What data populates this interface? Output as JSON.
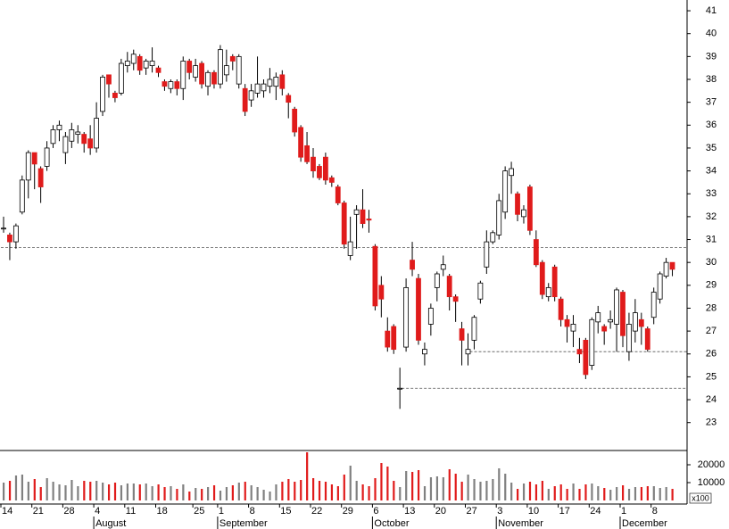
{
  "chart_data": {
    "type": "candlestick",
    "categories": [
      "14",
      null,
      null,
      null,
      null,
      "21",
      null,
      null,
      null,
      null,
      "28",
      null,
      null,
      null,
      null,
      "4",
      null,
      null,
      null,
      null,
      "11",
      null,
      null,
      null,
      null,
      "18",
      null,
      null,
      null,
      null,
      null,
      "25",
      null,
      null,
      null,
      "1",
      null,
      null,
      null,
      null,
      "8",
      null,
      null,
      null,
      null,
      "15",
      null,
      null,
      null,
      null,
      "22",
      null,
      null,
      null,
      null,
      "29",
      null,
      null,
      null,
      null,
      "6",
      null,
      null,
      null,
      null,
      "13",
      null,
      null,
      null,
      null,
      "20",
      null,
      null,
      null,
      null,
      "27",
      null,
      null,
      null,
      null,
      "3",
      null,
      null,
      null,
      null,
      "10",
      null,
      null,
      null,
      null,
      "17",
      null,
      null,
      null,
      null,
      "24",
      null,
      null,
      null,
      null,
      "1",
      null,
      null,
      null,
      null,
      "8",
      null,
      null,
      null
    ],
    "month_labels": [
      {
        "label": "August",
        "category": 15
      },
      {
        "label": "September",
        "category": 35
      },
      {
        "label": "October",
        "category": 60
      },
      {
        "label": "November",
        "category": 80
      },
      {
        "label": "December",
        "category": 100
      }
    ],
    "open": [
      31.5,
      31.2,
      30.9,
      32.2,
      33.6,
      34.8,
      34.1,
      34.2,
      35.2,
      35.8,
      34.8,
      35.3,
      35.6,
      35.6,
      35.4,
      35.0,
      36.6,
      38.2,
      37.4,
      37.4,
      38.6,
      38.7,
      39.0,
      38.5,
      38.6,
      38.5,
      37.9,
      37.6,
      37.9,
      37.6,
      38.8,
      38.1,
      38.7,
      37.7,
      38.3,
      37.8,
      38.2,
      39.0,
      37.8,
      37.6,
      37.1,
      37.4,
      37.5,
      37.7,
      37.7,
      38.2,
      37.3,
      36.7,
      35.9,
      35.1,
      34.6,
      34.2,
      34.6,
      33.7,
      33.3,
      32.6,
      30.3,
      32.1,
      32.3,
      31.9,
      30.7,
      29.0,
      27.0,
      27.2,
      24.5,
      26.3,
      30.1,
      29.3,
      26.0,
      27.3,
      28.9,
      29.7,
      29.4,
      28.5,
      27.1,
      26.0,
      26.6,
      28.4,
      29.8,
      30.9,
      31.2,
      32.2,
      33.8,
      33.0,
      32.0,
      33.3,
      31.0,
      30.0,
      28.5,
      29.8,
      28.4,
      27.5,
      27.0,
      26.2,
      26.6,
      25.5,
      27.4,
      27.2,
      27.4,
      27.3,
      28.7,
      26.1,
      27.0,
      27.5,
      27.1,
      27.6,
      28.4,
      29.4,
      30.0
    ],
    "high": [
      32,
      31.3,
      31.7,
      33.8,
      34.9,
      34.8,
      34.2,
      35.3,
      36.0,
      36.2,
      35.7,
      36.1,
      36.0,
      35.7,
      36.0,
      37.0,
      38.2,
      38.2,
      37.5,
      38.9,
      39.2,
      39.3,
      39.1,
      38.9,
      39.4,
      38.6,
      38.0,
      38.0,
      38.0,
      39.0,
      38.9,
      38.9,
      38.8,
      38.4,
      38.4,
      39.5,
      39.3,
      39.1,
      39.1,
      37.8,
      37.8,
      39.0,
      38.0,
      38.5,
      38.3,
      38.4,
      37.4,
      36.8,
      36.0,
      35.7,
      35.0,
      34.3,
      34.8,
      33.8,
      33.4,
      32.7,
      32.0,
      32.5,
      33.2,
      32.3,
      30.8,
      29.4,
      27.6,
      27.3,
      25.4,
      29.3,
      30.9,
      29.5,
      26.5,
      28.2,
      29.6,
      30.3,
      29.5,
      28.6,
      27.4,
      26.9,
      27.7,
      29.2,
      31.4,
      31.4,
      33.0,
      34.2,
      34.4,
      33.1,
      32.5,
      33.4,
      31.4,
      30.1,
      29.1,
      29.9,
      28.5,
      27.7,
      27.7,
      26.7,
      26.7,
      27.6,
      28.1,
      27.3,
      27.9,
      28.9,
      28.8,
      27.8,
      28.4,
      27.8,
      27.2,
      28.9,
      29.6,
      30.2,
      30.0
    ],
    "low": [
      31.3,
      30.1,
      30.6,
      32.1,
      32.8,
      33.2,
      32.6,
      34.0,
      35.0,
      35.3,
      34.3,
      35.0,
      35.2,
      34.8,
      34.7,
      34.8,
      36.4,
      37.2,
      37.0,
      37.3,
      38.3,
      38.4,
      38.2,
      38.2,
      38.3,
      38.1,
      37.5,
      37.4,
      37.3,
      37.1,
      38.0,
      37.9,
      37.6,
      37.3,
      37.6,
      37.6,
      37.9,
      38.4,
      37.6,
      36.4,
      36.8,
      37.2,
      37.2,
      37.4,
      37.1,
      37.3,
      36.3,
      35.5,
      34.4,
      34.3,
      33.7,
      33.6,
      33.4,
      33.3,
      32.5,
      30.6,
      30.1,
      30.6,
      31.5,
      31.3,
      27.9,
      27.6,
      26.1,
      26.0,
      23.6,
      26.1,
      29.4,
      26.4,
      25.5,
      26.8,
      28.3,
      29.4,
      27.9,
      27.4,
      25.5,
      25.5,
      26.2,
      28.2,
      29.5,
      30.8,
      31.0,
      31.9,
      33.0,
      31.8,
      31.7,
      31.2,
      29.8,
      28.4,
      28.3,
      28.3,
      27.2,
      26.5,
      26.3,
      25.6,
      24.9,
      25.3,
      26.9,
      26.4,
      27.1,
      26.1,
      26.3,
      25.7,
      26.5,
      26.4,
      26.1,
      27.3,
      28.2,
      29.3,
      29.4
    ],
    "close": [
      31.5,
      30.9,
      31.6,
      33.6,
      34.8,
      34.3,
      33.3,
      35.0,
      35.8,
      36.0,
      35.5,
      35.8,
      35.7,
      35.2,
      35.0,
      36.3,
      38.1,
      37.8,
      37.2,
      38.7,
      38.8,
      39.1,
      38.4,
      38.8,
      38.8,
      38.3,
      37.7,
      37.9,
      37.6,
      38.8,
      38.3,
      38.6,
      37.8,
      38.3,
      37.8,
      39.3,
      38.6,
      38.8,
      39.0,
      36.6,
      37.5,
      37.8,
      37.8,
      38.0,
      38.1,
      37.6,
      37.0,
      35.7,
      34.6,
      34.4,
      34.0,
      33.7,
      33.6,
      33.5,
      32.6,
      30.8,
      30.9,
      32.3,
      31.7,
      31.85,
      28.1,
      28.4,
      26.3,
      26.2,
      24.5,
      28.9,
      29.7,
      26.6,
      26.2,
      28.0,
      29.5,
      29.9,
      28.5,
      28.3,
      26.6,
      26.2,
      27.6,
      29.1,
      30.9,
      31.3,
      32.7,
      34.0,
      34.1,
      32.1,
      32.3,
      31.4,
      29.9,
      28.6,
      28.9,
      28.5,
      27.5,
      27.2,
      27.3,
      26.0,
      25.1,
      27.5,
      27.8,
      27.0,
      27.5,
      28.8,
      26.8,
      27.3,
      27.8,
      27.2,
      26.2,
      28.7,
      29.5,
      30.0,
      29.7
    ],
    "volume": [
      10000,
      11000,
      14000,
      14500,
      10500,
      12000,
      7500,
      12500,
      10500,
      9000,
      8500,
      11500,
      8000,
      11000,
      10500,
      11000,
      10000,
      9000,
      10000,
      8500,
      9500,
      9500,
      9000,
      9500,
      8000,
      9000,
      7500,
      8000,
      6500,
      9000,
      5000,
      7000,
      6500,
      7500,
      8500,
      5500,
      7500,
      8500,
      10000,
      10500,
      8500,
      7500,
      6000,
      5000,
      9000,
      10500,
      12000,
      10500,
      11500,
      27000,
      12500,
      11000,
      10500,
      9000,
      8000,
      14500,
      19500,
      11000,
      9000,
      8000,
      12500,
      21000,
      19000,
      11000,
      7500,
      16500,
      16000,
      17000,
      8000,
      13000,
      13500,
      13000,
      17500,
      15000,
      10500,
      14500,
      12000,
      10500,
      11000,
      12000,
      18000,
      15000,
      10000,
      6500,
      9500,
      10500,
      9000,
      11000,
      6500,
      8000,
      9000,
      6500,
      9500,
      6500,
      9000,
      9500,
      8000,
      7000,
      6000,
      7500,
      8500,
      6500,
      7500,
      7500,
      8000,
      8000,
      7000,
      7500,
      6500
    ],
    "up_color": "#ffffff",
    "down_color": "#e01b1b",
    "volume_up_color": "#808080",
    "volume_down_color": "#e01b1b",
    "ylim": [
      21.78,
      41.47
    ],
    "yticks": [
      23,
      24,
      25,
      26,
      27,
      28,
      29,
      30,
      31,
      32,
      33,
      34,
      35,
      36,
      37,
      38,
      39,
      40,
      41
    ],
    "volume_lim": [
      0,
      28000
    ],
    "volume_ticks": [
      10000,
      20000
    ],
    "volume_unit": "x100",
    "levels": [
      {
        "value": 30.65,
        "category": 0
      },
      {
        "value": 26.1,
        "category": 75
      },
      {
        "value": 24.5,
        "category": 64
      }
    ]
  }
}
